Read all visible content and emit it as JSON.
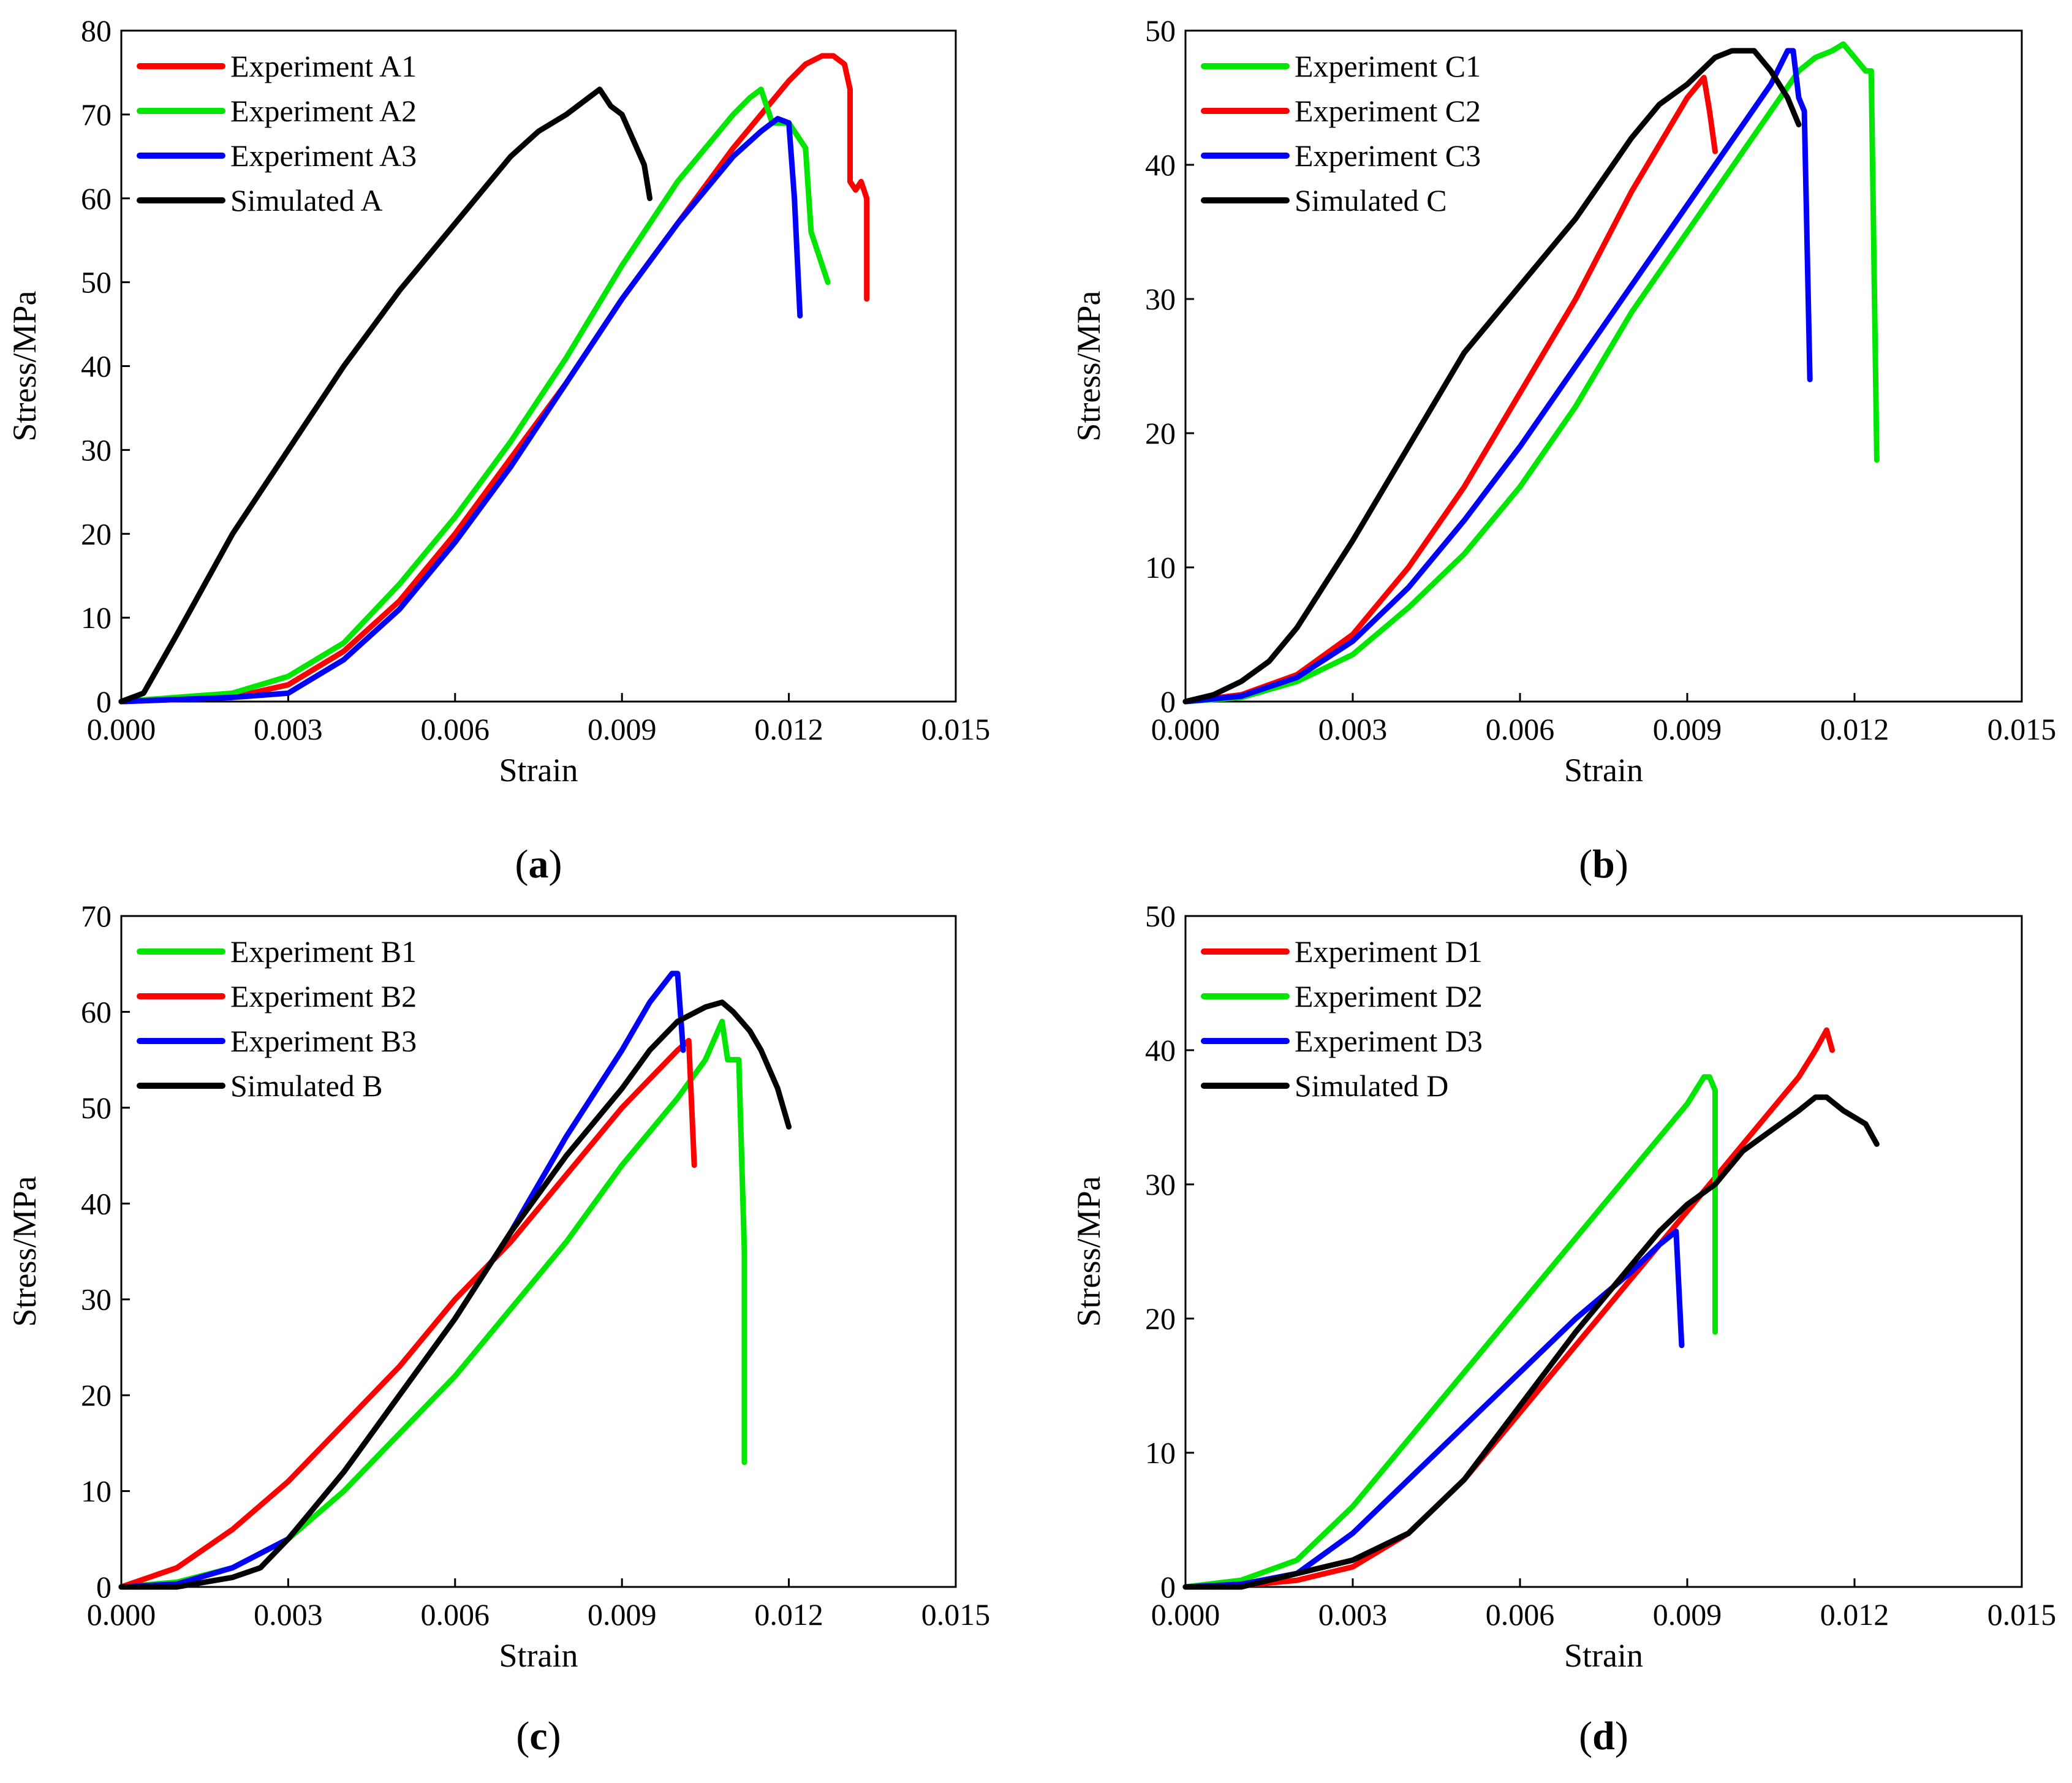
{
  "figure": {
    "panels": [
      "a",
      "b",
      "c",
      "d"
    ]
  },
  "chart_data": [
    {
      "id": "a",
      "type": "line",
      "panel_label": "a",
      "xlabel": "Strain",
      "ylabel": "Stress/MPa",
      "xlim": [
        0,
        0.015
      ],
      "ylim": [
        0,
        80
      ],
      "xticks": [
        "0.000",
        "0.003",
        "0.006",
        "0.009",
        "0.012",
        "0.015"
      ],
      "yticks": [
        "0",
        "10",
        "20",
        "30",
        "40",
        "50",
        "60",
        "70",
        "80"
      ],
      "xtick_values": [
        0,
        0.003,
        0.006,
        0.009,
        0.012,
        0.015
      ],
      "ytick_values": [
        0,
        10,
        20,
        30,
        40,
        50,
        60,
        70,
        80
      ],
      "legend_position": "top-left",
      "series": [
        {
          "name": "Experiment A1",
          "color": "#ff0000",
          "x": [
            0,
            0.002,
            0.003,
            0.004,
            0.005,
            0.006,
            0.007,
            0.008,
            0.009,
            0.01,
            0.011,
            0.0115,
            0.012,
            0.0123,
            0.0126,
            0.0128,
            0.013,
            0.0131,
            0.0131,
            0.0132,
            0.0133,
            0.0134,
            0.0134
          ],
          "y": [
            0,
            0.5,
            2,
            6,
            12,
            20,
            29,
            38,
            48,
            57,
            66,
            70,
            74,
            76,
            77,
            77,
            76,
            73,
            62,
            61,
            62,
            60,
            48
          ]
        },
        {
          "name": "Experiment A2",
          "color": "#00e600",
          "x": [
            0,
            0.002,
            0.003,
            0.004,
            0.005,
            0.006,
            0.007,
            0.008,
            0.009,
            0.01,
            0.0105,
            0.011,
            0.0113,
            0.0115,
            0.0117,
            0.012,
            0.0123,
            0.0124,
            0.0126,
            0.0127
          ],
          "y": [
            0,
            1,
            3,
            7,
            14,
            22,
            31,
            41,
            52,
            62,
            66,
            70,
            72,
            73,
            69,
            69,
            66,
            56,
            52,
            50
          ]
        },
        {
          "name": "Experiment A3",
          "color": "#0000ff",
          "x": [
            0,
            0.002,
            0.003,
            0.004,
            0.005,
            0.006,
            0.007,
            0.008,
            0.009,
            0.01,
            0.011,
            0.0115,
            0.0118,
            0.012,
            0.0121,
            0.0122
          ],
          "y": [
            0,
            0.5,
            1,
            5,
            11,
            19,
            28,
            38,
            48,
            57,
            65,
            68,
            69.5,
            69,
            60,
            46
          ]
        },
        {
          "name": "Simulated  A",
          "color": "#000000",
          "x": [
            0,
            0.0004,
            0.001,
            0.002,
            0.003,
            0.004,
            0.005,
            0.006,
            0.007,
            0.0075,
            0.008,
            0.0084,
            0.0086,
            0.0088,
            0.009,
            0.0092,
            0.0094,
            0.0095
          ],
          "y": [
            0,
            1,
            8,
            20,
            30,
            40,
            49,
            57,
            65,
            68,
            70,
            72,
            73,
            71,
            70,
            67,
            64,
            60
          ]
        }
      ]
    },
    {
      "id": "b",
      "type": "line",
      "panel_label": "b",
      "xlabel": "Strain",
      "ylabel": "Stress/MPa",
      "xlim": [
        0,
        0.015
      ],
      "ylim": [
        0,
        50
      ],
      "xticks": [
        "0.000",
        "0.003",
        "0.006",
        "0.009",
        "0.012",
        "0.015"
      ],
      "yticks": [
        "0",
        "10",
        "20",
        "30",
        "40",
        "50"
      ],
      "xtick_values": [
        0,
        0.003,
        0.006,
        0.009,
        0.012,
        0.015
      ],
      "ytick_values": [
        0,
        10,
        20,
        30,
        40,
        50
      ],
      "legend_position": "top-left",
      "series": [
        {
          "name": "Experiment C1",
          "color": "#00e600",
          "x": [
            0,
            0.001,
            0.002,
            0.003,
            0.004,
            0.005,
            0.006,
            0.007,
            0.008,
            0.009,
            0.01,
            0.0105,
            0.011,
            0.0113,
            0.0116,
            0.0118,
            0.012,
            0.0122,
            0.0123,
            0.0124
          ],
          "y": [
            0,
            0.3,
            1.5,
            3.5,
            7,
            11,
            16,
            22,
            29,
            35,
            41,
            44,
            47,
            48,
            48.5,
            49,
            48,
            47,
            47,
            18
          ]
        },
        {
          "name": "Experiment C2",
          "color": "#ff0000",
          "x": [
            0,
            0.001,
            0.002,
            0.003,
            0.004,
            0.005,
            0.006,
            0.007,
            0.008,
            0.009,
            0.0093,
            0.0094,
            0.0095
          ],
          "y": [
            0,
            0.5,
            2,
            5,
            10,
            16,
            23,
            30,
            38,
            45,
            46.5,
            44,
            41
          ]
        },
        {
          "name": "Experiment C3",
          "color": "#0000ff",
          "x": [
            0,
            0.001,
            0.002,
            0.003,
            0.004,
            0.005,
            0.006,
            0.007,
            0.008,
            0.009,
            0.01,
            0.0105,
            0.0108,
            0.0109,
            0.011,
            0.0111,
            0.0112
          ],
          "y": [
            0,
            0.4,
            1.8,
            4.5,
            8.5,
            13.5,
            19,
            25,
            31,
            37,
            43,
            46,
            48.5,
            48.5,
            45,
            44,
            24
          ]
        },
        {
          "name": "Simulated  C",
          "color": "#000000",
          "x": [
            0,
            0.0005,
            0.001,
            0.0015,
            0.002,
            0.003,
            0.004,
            0.005,
            0.006,
            0.007,
            0.008,
            0.0085,
            0.009,
            0.0095,
            0.0098,
            0.01,
            0.0102,
            0.0105,
            0.0108,
            0.011
          ],
          "y": [
            0,
            0.5,
            1.5,
            3,
            5.5,
            12,
            19,
            26,
            31,
            36,
            42,
            44.5,
            46,
            48,
            48.5,
            48.5,
            48.5,
            47,
            45,
            43
          ]
        }
      ]
    },
    {
      "id": "c",
      "type": "line",
      "panel_label": "c",
      "xlabel": "Strain",
      "ylabel": "Stress/MPa",
      "xlim": [
        0,
        0.015
      ],
      "ylim": [
        0,
        70
      ],
      "xticks": [
        "0.000",
        "0.003",
        "0.006",
        "0.009",
        "0.012",
        "0.015"
      ],
      "yticks": [
        "0",
        "10",
        "20",
        "30",
        "40",
        "50",
        "60",
        "70"
      ],
      "xtick_values": [
        0,
        0.003,
        0.006,
        0.009,
        0.012,
        0.015
      ],
      "ytick_values": [
        0,
        10,
        20,
        30,
        40,
        50,
        60,
        70
      ],
      "legend_position": "top-left",
      "series": [
        {
          "name": "Experiment B1",
          "color": "#00e600",
          "x": [
            0,
            0.001,
            0.002,
            0.003,
            0.004,
            0.005,
            0.006,
            0.007,
            0.008,
            0.009,
            0.01,
            0.0105,
            0.0108,
            0.0109,
            0.0111,
            0.0112,
            0.0112
          ],
          "y": [
            0,
            0.5,
            2,
            5,
            10,
            16,
            22,
            29,
            36,
            44,
            51,
            55,
            59,
            55,
            55,
            35,
            13
          ]
        },
        {
          "name": "Experiment B2",
          "color": "#ff0000",
          "x": [
            0,
            0.001,
            0.002,
            0.003,
            0.004,
            0.005,
            0.006,
            0.007,
            0.008,
            0.009,
            0.0095,
            0.01,
            0.0102,
            0.0103
          ],
          "y": [
            0,
            2,
            6,
            11,
            17,
            23,
            30,
            36,
            43,
            50,
            53,
            56,
            57,
            44
          ]
        },
        {
          "name": "Experiment B3",
          "color": "#0000ff",
          "x": [
            0,
            0.001,
            0.002,
            0.003,
            0.004,
            0.005,
            0.006,
            0.007,
            0.008,
            0.009,
            0.0095,
            0.0099,
            0.01,
            0.0101
          ],
          "y": [
            0,
            0.3,
            2,
            5,
            12,
            20,
            28,
            37,
            47,
            56,
            61,
            64,
            64,
            56
          ]
        },
        {
          "name": "Simulated  B",
          "color": "#000000",
          "x": [
            0,
            0.001,
            0.0015,
            0.002,
            0.0025,
            0.003,
            0.004,
            0.005,
            0.006,
            0.007,
            0.008,
            0.009,
            0.0095,
            0.01,
            0.0105,
            0.0108,
            0.011,
            0.0113,
            0.0115,
            0.0118,
            0.012
          ],
          "y": [
            0,
            0,
            0.5,
            1,
            2,
            5,
            12,
            20,
            28,
            37,
            45,
            52,
            56,
            59,
            60.5,
            61,
            60,
            58,
            56,
            52,
            48
          ]
        }
      ]
    },
    {
      "id": "d",
      "type": "line",
      "panel_label": "d",
      "xlabel": "Strain",
      "ylabel": "Stress/MPa",
      "xlim": [
        0,
        0.015
      ],
      "ylim": [
        0,
        50
      ],
      "xticks": [
        "0.000",
        "0.003",
        "0.006",
        "0.009",
        "0.012",
        "0.015"
      ],
      "yticks": [
        "0",
        "10",
        "20",
        "30",
        "40",
        "50"
      ],
      "xtick_values": [
        0,
        0.003,
        0.006,
        0.009,
        0.012,
        0.015
      ],
      "ytick_values": [
        0,
        10,
        20,
        30,
        40,
        50
      ],
      "legend_position": "top-left",
      "series": [
        {
          "name": "Experiment D1",
          "color": "#ff0000",
          "x": [
            0,
            0.001,
            0.002,
            0.003,
            0.004,
            0.005,
            0.006,
            0.007,
            0.008,
            0.009,
            0.01,
            0.011,
            0.0113,
            0.0115,
            0.0116
          ],
          "y": [
            0,
            0.1,
            0.5,
            1.5,
            4,
            8,
            13,
            18,
            23,
            28,
            33,
            38,
            40,
            41.5,
            40
          ]
        },
        {
          "name": "Experiment D2",
          "color": "#00e600",
          "x": [
            0,
            0.001,
            0.002,
            0.003,
            0.004,
            0.005,
            0.006,
            0.007,
            0.0076,
            0.008,
            0.009,
            0.0093,
            0.0094,
            0.0095,
            0.0095
          ],
          "y": [
            0,
            0.5,
            2,
            6,
            11,
            16,
            21,
            26,
            29,
            31,
            36,
            38,
            38,
            37,
            19
          ]
        },
        {
          "name": "Experiment D3",
          "color": "#0000ff",
          "x": [
            0,
            0.001,
            0.002,
            0.003,
            0.004,
            0.005,
            0.006,
            0.007,
            0.008,
            0.0085,
            0.0088,
            0.0089
          ],
          "y": [
            0,
            0.2,
            1,
            4,
            8,
            12,
            16,
            20,
            23.5,
            25.5,
            26.5,
            18
          ]
        },
        {
          "name": "Simulated  D",
          "color": "#000000",
          "x": [
            0,
            0.001,
            0.002,
            0.003,
            0.004,
            0.005,
            0.006,
            0.007,
            0.008,
            0.0085,
            0.009,
            0.0095,
            0.01,
            0.0105,
            0.011,
            0.0113,
            0.0115,
            0.0118,
            0.012,
            0.0122,
            0.0124
          ],
          "y": [
            0,
            0,
            1,
            2,
            4,
            8,
            13.5,
            19,
            24,
            26.5,
            28.5,
            30,
            32.5,
            34,
            35.5,
            36.5,
            36.5,
            35.5,
            35,
            34.5,
            33
          ]
        }
      ]
    }
  ]
}
